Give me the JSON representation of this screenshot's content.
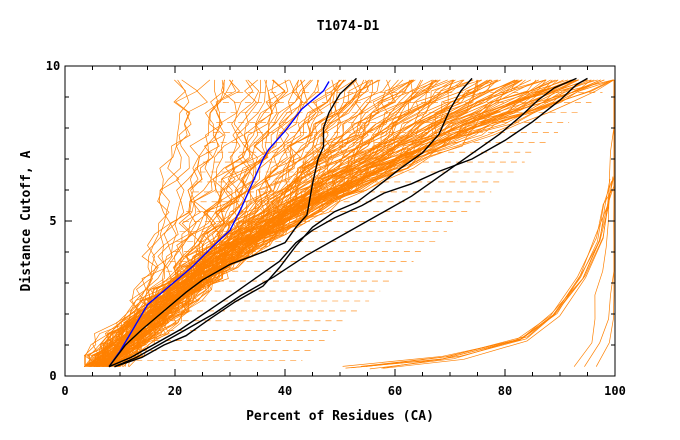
{
  "chart_data": {
    "type": "line",
    "title": "T1074-D1",
    "xlabel": "Percent of Residues (CA)",
    "ylabel": "Distance Cutoff, A",
    "xlim": [
      0,
      100
    ],
    "ylim": [
      0,
      10
    ],
    "xticks": [
      0,
      20,
      40,
      60,
      80,
      100
    ],
    "yticks": [
      0,
      5,
      10
    ],
    "grid": false,
    "colors": {
      "background_models": "#ff8000",
      "highlight_blue": "#0000ff",
      "highlight_black": "#000000",
      "axes": "#000000"
    },
    "series": [
      {
        "color": "#0000ff",
        "points": [
          [
            8,
            0.3
          ],
          [
            10,
            0.8
          ],
          [
            12,
            1.4
          ],
          [
            15,
            2.3
          ],
          [
            19,
            2.9
          ],
          [
            23,
            3.5
          ],
          [
            27,
            4.2
          ],
          [
            30,
            4.7
          ],
          [
            32,
            5.4
          ],
          [
            34,
            6.2
          ],
          [
            36,
            7.0
          ],
          [
            37,
            7.3
          ],
          [
            40,
            7.9
          ],
          [
            43,
            8.6
          ],
          [
            47,
            9.2
          ],
          [
            48,
            9.5
          ]
        ]
      },
      {
        "color": "#000000",
        "points": [
          [
            8,
            0.3
          ],
          [
            11,
            1.0
          ],
          [
            14,
            1.5
          ],
          [
            18,
            2.1
          ],
          [
            22,
            2.7
          ],
          [
            25,
            3.1
          ],
          [
            30,
            3.6
          ],
          [
            36,
            4.0
          ],
          [
            40,
            4.3
          ],
          [
            42,
            4.8
          ],
          [
            44,
            5.2
          ],
          [
            44.5,
            5.7
          ],
          [
            45,
            6.2
          ],
          [
            46,
            7.0
          ],
          [
            47,
            7.4
          ],
          [
            47,
            8.0
          ],
          [
            48,
            8.5
          ],
          [
            50,
            9.1
          ],
          [
            53,
            9.6
          ]
        ]
      },
      {
        "color": "#000000",
        "points": [
          [
            9,
            0.3
          ],
          [
            13,
            0.6
          ],
          [
            17,
            1.0
          ],
          [
            22,
            1.5
          ],
          [
            27,
            2.0
          ],
          [
            32,
            2.6
          ],
          [
            38,
            3.2
          ],
          [
            44,
            3.9
          ],
          [
            50,
            4.5
          ],
          [
            55,
            5.0
          ],
          [
            59,
            5.4
          ],
          [
            63,
            5.8
          ],
          [
            67,
            6.3
          ],
          [
            71,
            6.8
          ],
          [
            75,
            7.3
          ],
          [
            79,
            7.8
          ],
          [
            83,
            8.4
          ],
          [
            86,
            8.9
          ],
          [
            89,
            9.3
          ],
          [
            93,
            9.6
          ]
        ]
      },
      {
        "color": "#000000",
        "points": [
          [
            9,
            0.3
          ],
          [
            14,
            0.6
          ],
          [
            18,
            1.0
          ],
          [
            22,
            1.3
          ],
          [
            26,
            1.8
          ],
          [
            31,
            2.4
          ],
          [
            36,
            2.9
          ],
          [
            39,
            3.5
          ],
          [
            42,
            4.2
          ],
          [
            45,
            4.8
          ],
          [
            49,
            5.3
          ],
          [
            53,
            5.6
          ],
          [
            56,
            6.0
          ],
          [
            61,
            6.7
          ],
          [
            65,
            7.2
          ],
          [
            68,
            7.8
          ],
          [
            70,
            8.6
          ],
          [
            72,
            9.2
          ],
          [
            74,
            9.6
          ]
        ]
      },
      {
        "color": "#000000",
        "points": [
          [
            8,
            0.3
          ],
          [
            12,
            0.6
          ],
          [
            16,
            1.0
          ],
          [
            21,
            1.5
          ],
          [
            26,
            2.1
          ],
          [
            31,
            2.7
          ],
          [
            35,
            3.2
          ],
          [
            39,
            3.7
          ],
          [
            42,
            4.3
          ],
          [
            45,
            4.7
          ],
          [
            49,
            5.1
          ],
          [
            54,
            5.5
          ],
          [
            58,
            5.9
          ],
          [
            63,
            6.2
          ],
          [
            68,
            6.6
          ],
          [
            74,
            7.0
          ],
          [
            80,
            7.6
          ],
          [
            85,
            8.2
          ],
          [
            90,
            8.9
          ],
          [
            93,
            9.4
          ],
          [
            95,
            9.6
          ]
        ]
      }
    ]
  }
}
